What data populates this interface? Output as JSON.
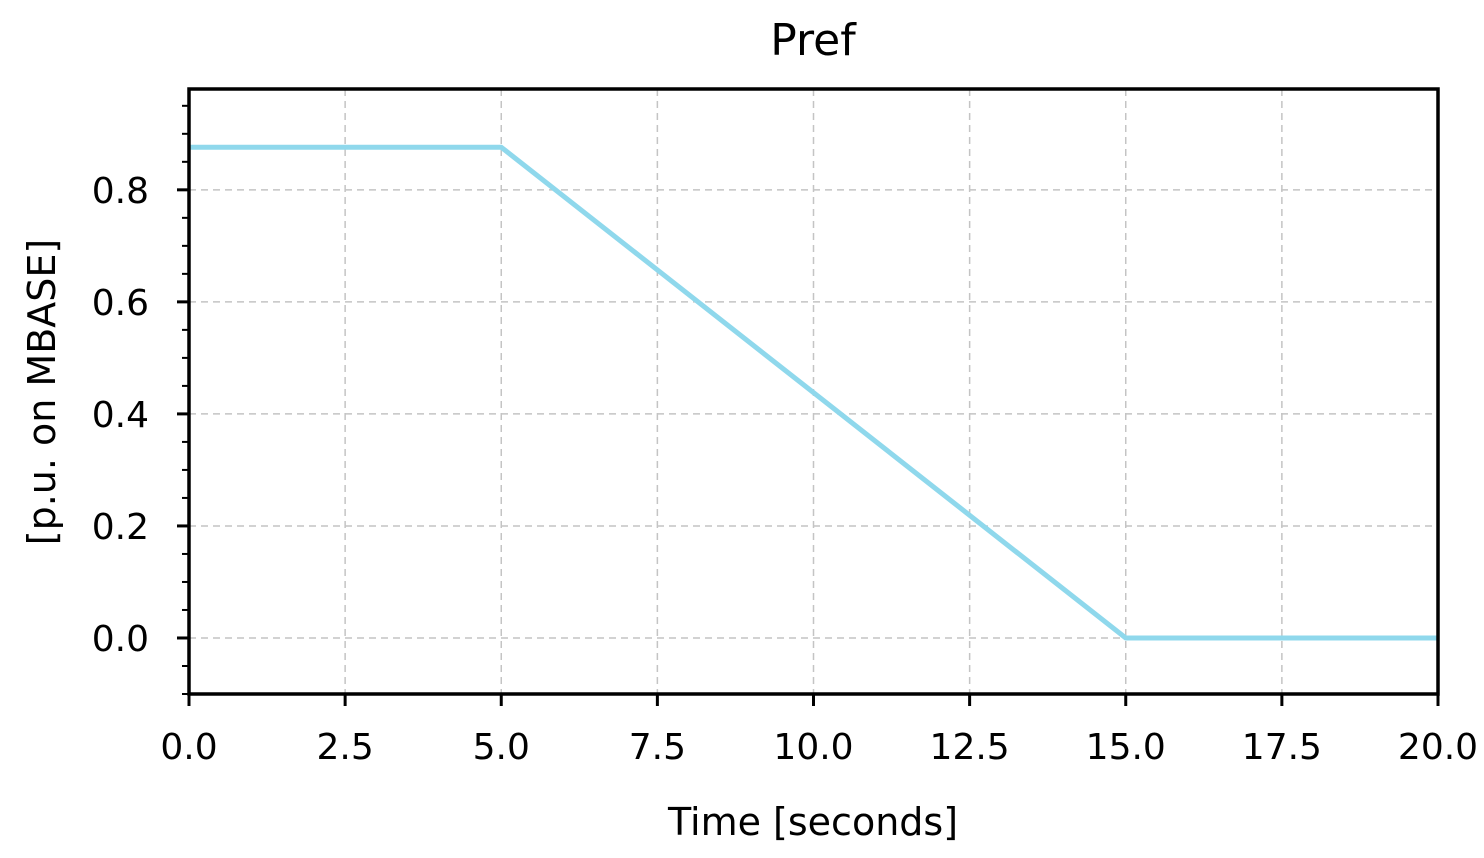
{
  "chart_data": {
    "type": "line",
    "title": "Pref",
    "xlabel": "Time [seconds]",
    "ylabel": "[p.u. on MBASE]",
    "xlim": [
      0,
      20
    ],
    "ylim": [
      -0.1,
      0.98
    ],
    "xticks": [
      0,
      2.5,
      5,
      7.5,
      10,
      12.5,
      15,
      17.5,
      20
    ],
    "xtick_labels": [
      "0.0",
      "2.5",
      "5.0",
      "7.5",
      "10.0",
      "12.5",
      "15.0",
      "17.5",
      "20.0"
    ],
    "yticks": [
      0,
      0.2,
      0.4,
      0.6,
      0.8
    ],
    "ytick_labels": [
      "0.0",
      "0.2",
      "0.4",
      "0.6",
      "0.8"
    ],
    "grid": true,
    "legend": "none",
    "series": [
      {
        "color": "#8fd8ec",
        "x": [
          0,
          5,
          15,
          20
        ],
        "y": [
          0.876,
          0.876,
          0,
          0
        ]
      }
    ]
  }
}
